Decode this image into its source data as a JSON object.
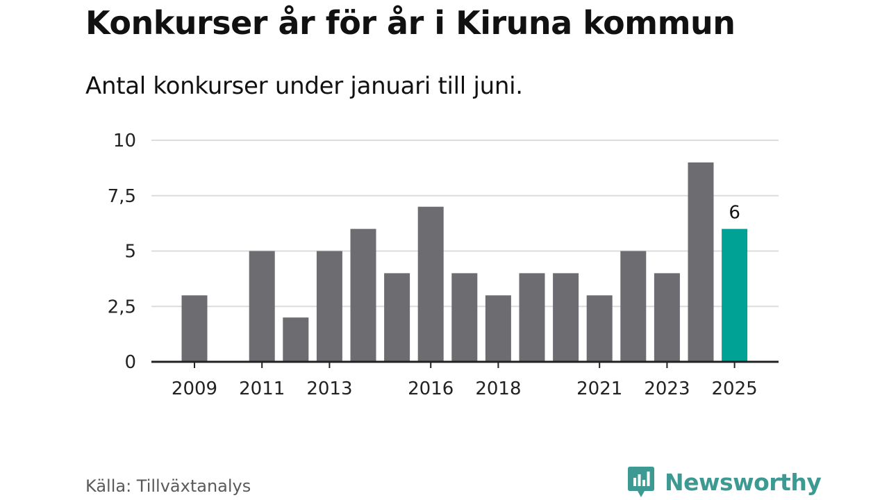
{
  "title": "Konkurser år för år i Kiruna kommun",
  "subtitle": "Antal konkurser under januari till juni.",
  "source": "Källa: Tillväxtanalys",
  "brand": {
    "name": "Newsworthy",
    "color": "#3d9a92",
    "icon": "bar-chart-speech-bubble-icon"
  },
  "colors": {
    "bar": "#6d6c71",
    "highlight": "#00a295",
    "grid": "#dcdcdc",
    "axis": "#222222"
  },
  "chart_data": {
    "type": "bar",
    "title": "Konkurser år för år i Kiruna kommun",
    "subtitle": "Antal konkurser under januari till juni.",
    "xlabel": "",
    "ylabel": "",
    "categories": [
      "2009",
      "2010",
      "2011",
      "2012",
      "2013",
      "2014",
      "2015",
      "2016",
      "2017",
      "2018",
      "2019",
      "2020",
      "2021",
      "2022",
      "2023",
      "2024",
      "2025"
    ],
    "values": [
      3,
      0,
      5,
      2,
      5,
      6,
      4,
      7,
      4,
      3,
      4,
      4,
      3,
      5,
      4,
      9,
      6
    ],
    "x_tick_labels": [
      "2009",
      "2011",
      "2013",
      "2016",
      "2018",
      "2021",
      "2023",
      "2025"
    ],
    "y_tick_labels": [
      "0",
      "2,5",
      "5",
      "7,5",
      "10"
    ],
    "y_ticks": [
      0,
      2.5,
      5,
      7.5,
      10
    ],
    "ylim": [
      0,
      10
    ],
    "highlight_category": "2025",
    "annotations": [
      {
        "category": "2025",
        "text": "6"
      }
    ],
    "grid": "horizontal",
    "legend": "none"
  }
}
